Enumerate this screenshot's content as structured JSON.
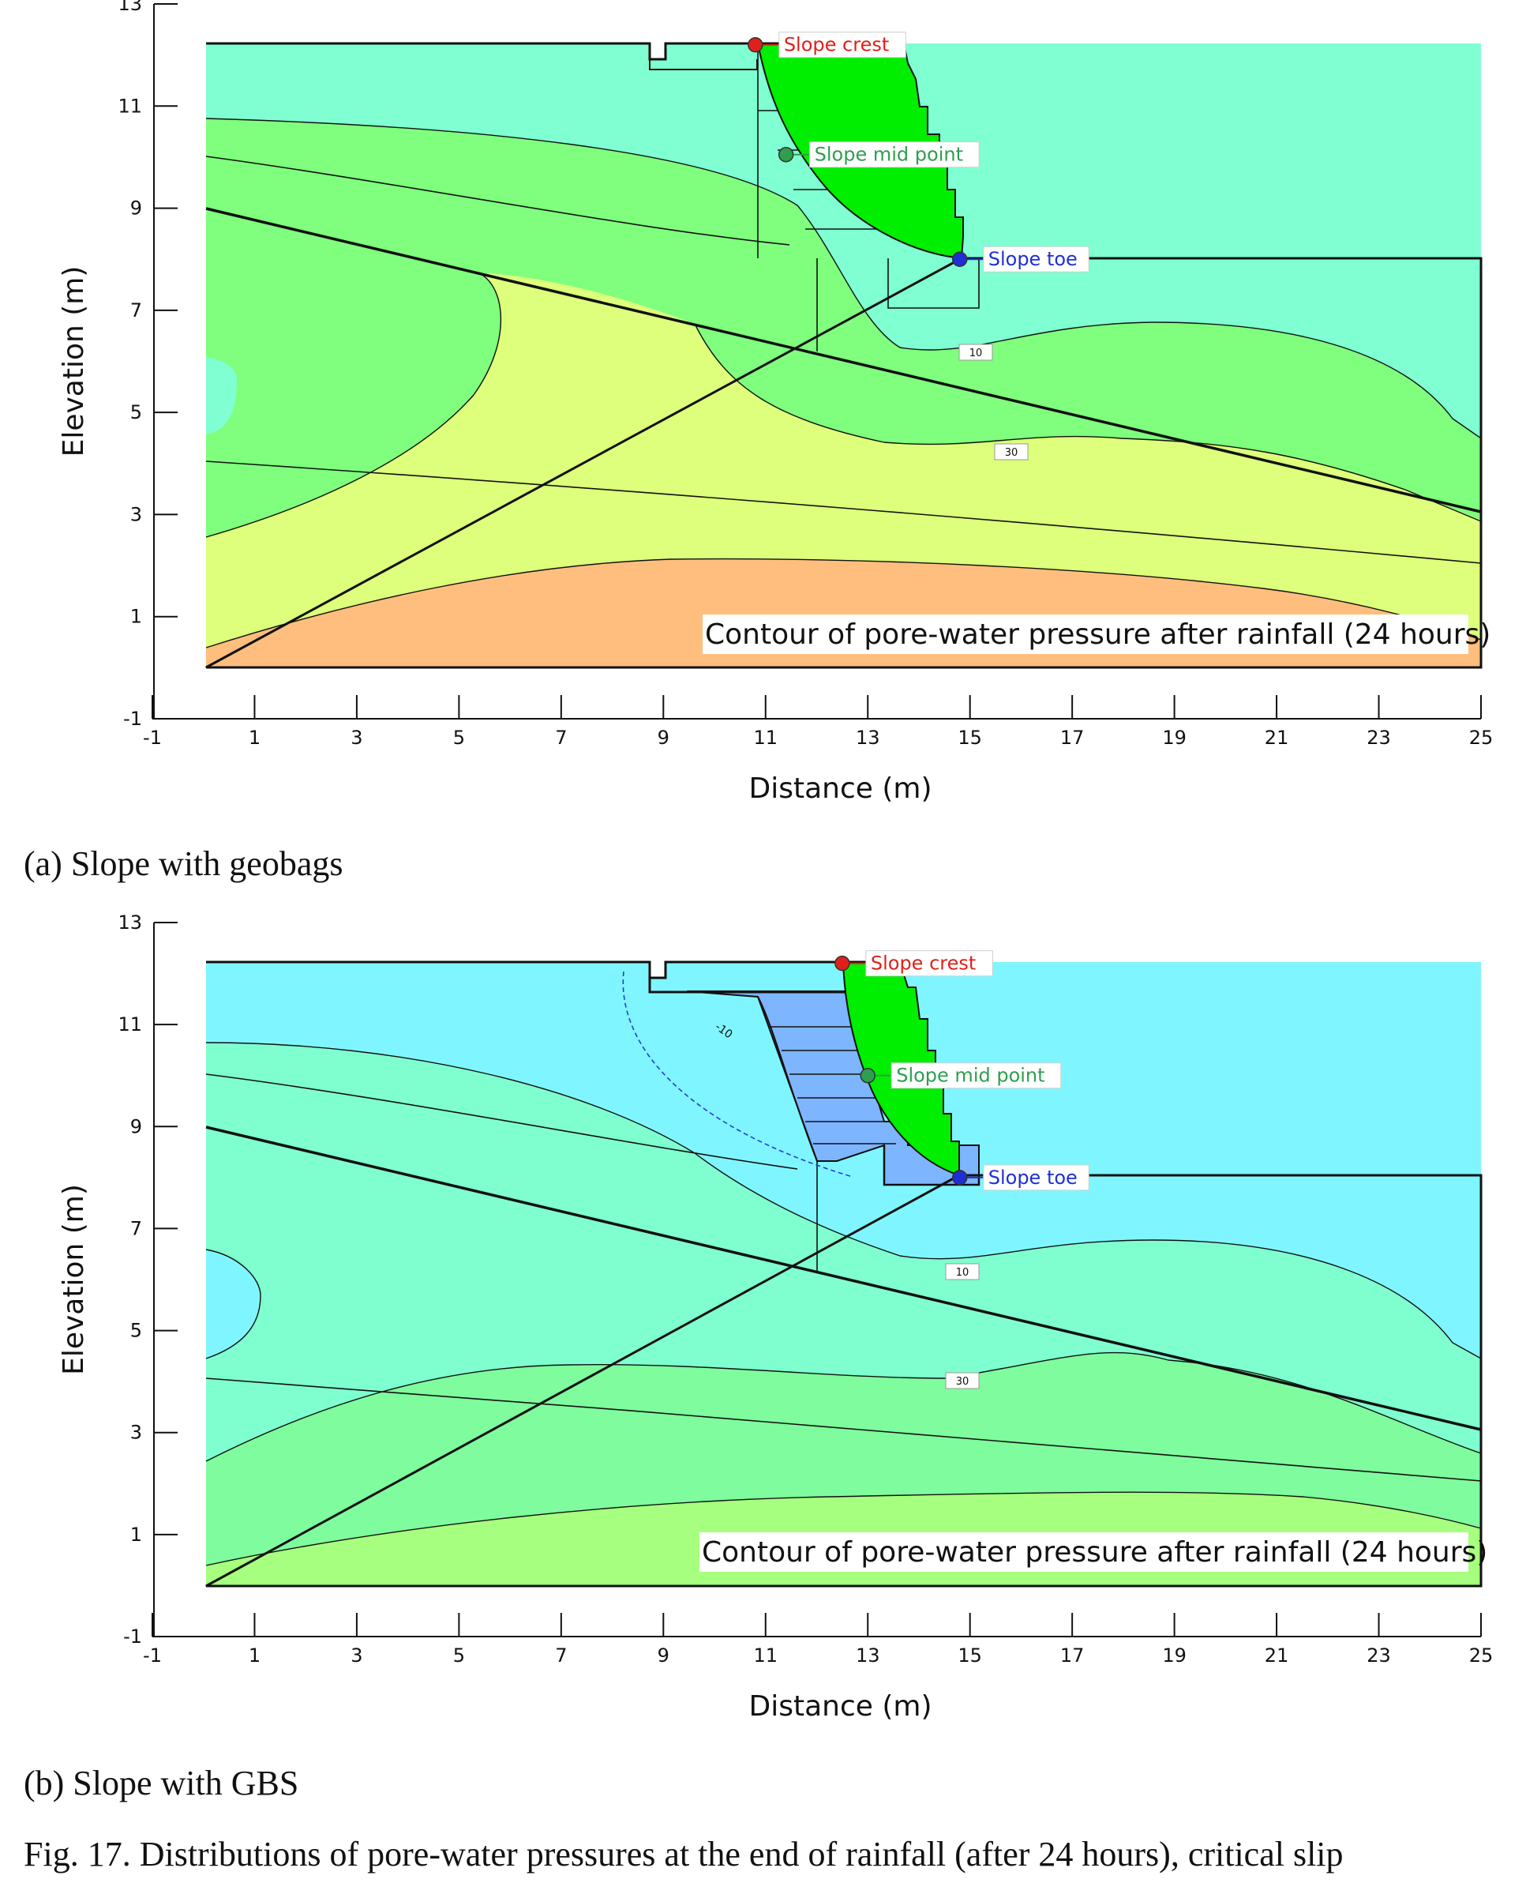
{
  "panels": [
    {
      "id": "a",
      "caption": "(a) Slope with geobags",
      "annotation": "Contour of pore-water pressure after rainfall (24 hours)",
      "points": [
        {
          "label": "Slope crest",
          "x": 10.8,
          "y": 12.2,
          "color": "#e0201b"
        },
        {
          "label": "Slope mid point",
          "x": 11.4,
          "y": 10.05,
          "color": "#2e9e4f"
        },
        {
          "label": "Slope toe",
          "x": 14.8,
          "y": 8.0,
          "color": "#1f2fd6"
        }
      ],
      "contour_labels": [
        "10",
        "30"
      ],
      "zone_colors": [
        "#7fffd2",
        "#7fff7d",
        "#ddff7b",
        "#ffbe7e"
      ],
      "slip_color": "#00ee00"
    },
    {
      "id": "b",
      "caption": "(b) Slope with GBS",
      "annotation": "Contour of pore-water pressure after rainfall (24 hours)",
      "points": [
        {
          "label": "Slope crest",
          "x": 12.5,
          "y": 12.2,
          "color": "#e0201b"
        },
        {
          "label": "Slope mid point",
          "x": 13.0,
          "y": 10.0,
          "color": "#2e9e4f"
        },
        {
          "label": "Slope toe",
          "x": 14.8,
          "y": 8.0,
          "color": "#1f2fd6"
        }
      ],
      "contour_labels": [
        "-10",
        "10",
        "30"
      ],
      "zone_colors": [
        "#7ff6ff",
        "#7fffd0",
        "#7ffc9d",
        "#a6ff7e"
      ],
      "gbs_color": "#7eb5ff",
      "slip_color": "#00ee00"
    }
  ],
  "chart_data": [
    {
      "type": "heatmap",
      "panel": "a",
      "xlabel": "Distance (m)",
      "ylabel": "Elevation (m)",
      "xlim": [
        -1,
        25
      ],
      "ylim": [
        -1,
        13
      ],
      "xticks": [
        -1,
        1,
        3,
        5,
        7,
        9,
        11,
        13,
        15,
        17,
        19,
        21,
        23,
        25
      ],
      "yticks": [
        -1,
        1,
        3,
        5,
        7,
        9,
        11,
        13
      ],
      "annotations": [
        "Contour of pore-water pressure after rainfall (24 hours)",
        "10",
        "30"
      ]
    },
    {
      "type": "heatmap",
      "panel": "b",
      "xlabel": "Distance (m)",
      "ylabel": "Elevation (m)",
      "xlim": [
        -1,
        25
      ],
      "ylim": [
        -1,
        13
      ],
      "xticks": [
        -1,
        1,
        3,
        5,
        7,
        9,
        11,
        13,
        15,
        17,
        19,
        21,
        23,
        25
      ],
      "yticks": [
        -1,
        1,
        3,
        5,
        7,
        9,
        11,
        13
      ],
      "annotations": [
        "Contour of pore-water pressure after rainfall (24 hours)",
        "-10",
        "10",
        "30"
      ]
    }
  ],
  "figure_caption": "Fig. 17. Distributions of pore-water pressures at the end of rainfall (after 24 hours), critical slip"
}
